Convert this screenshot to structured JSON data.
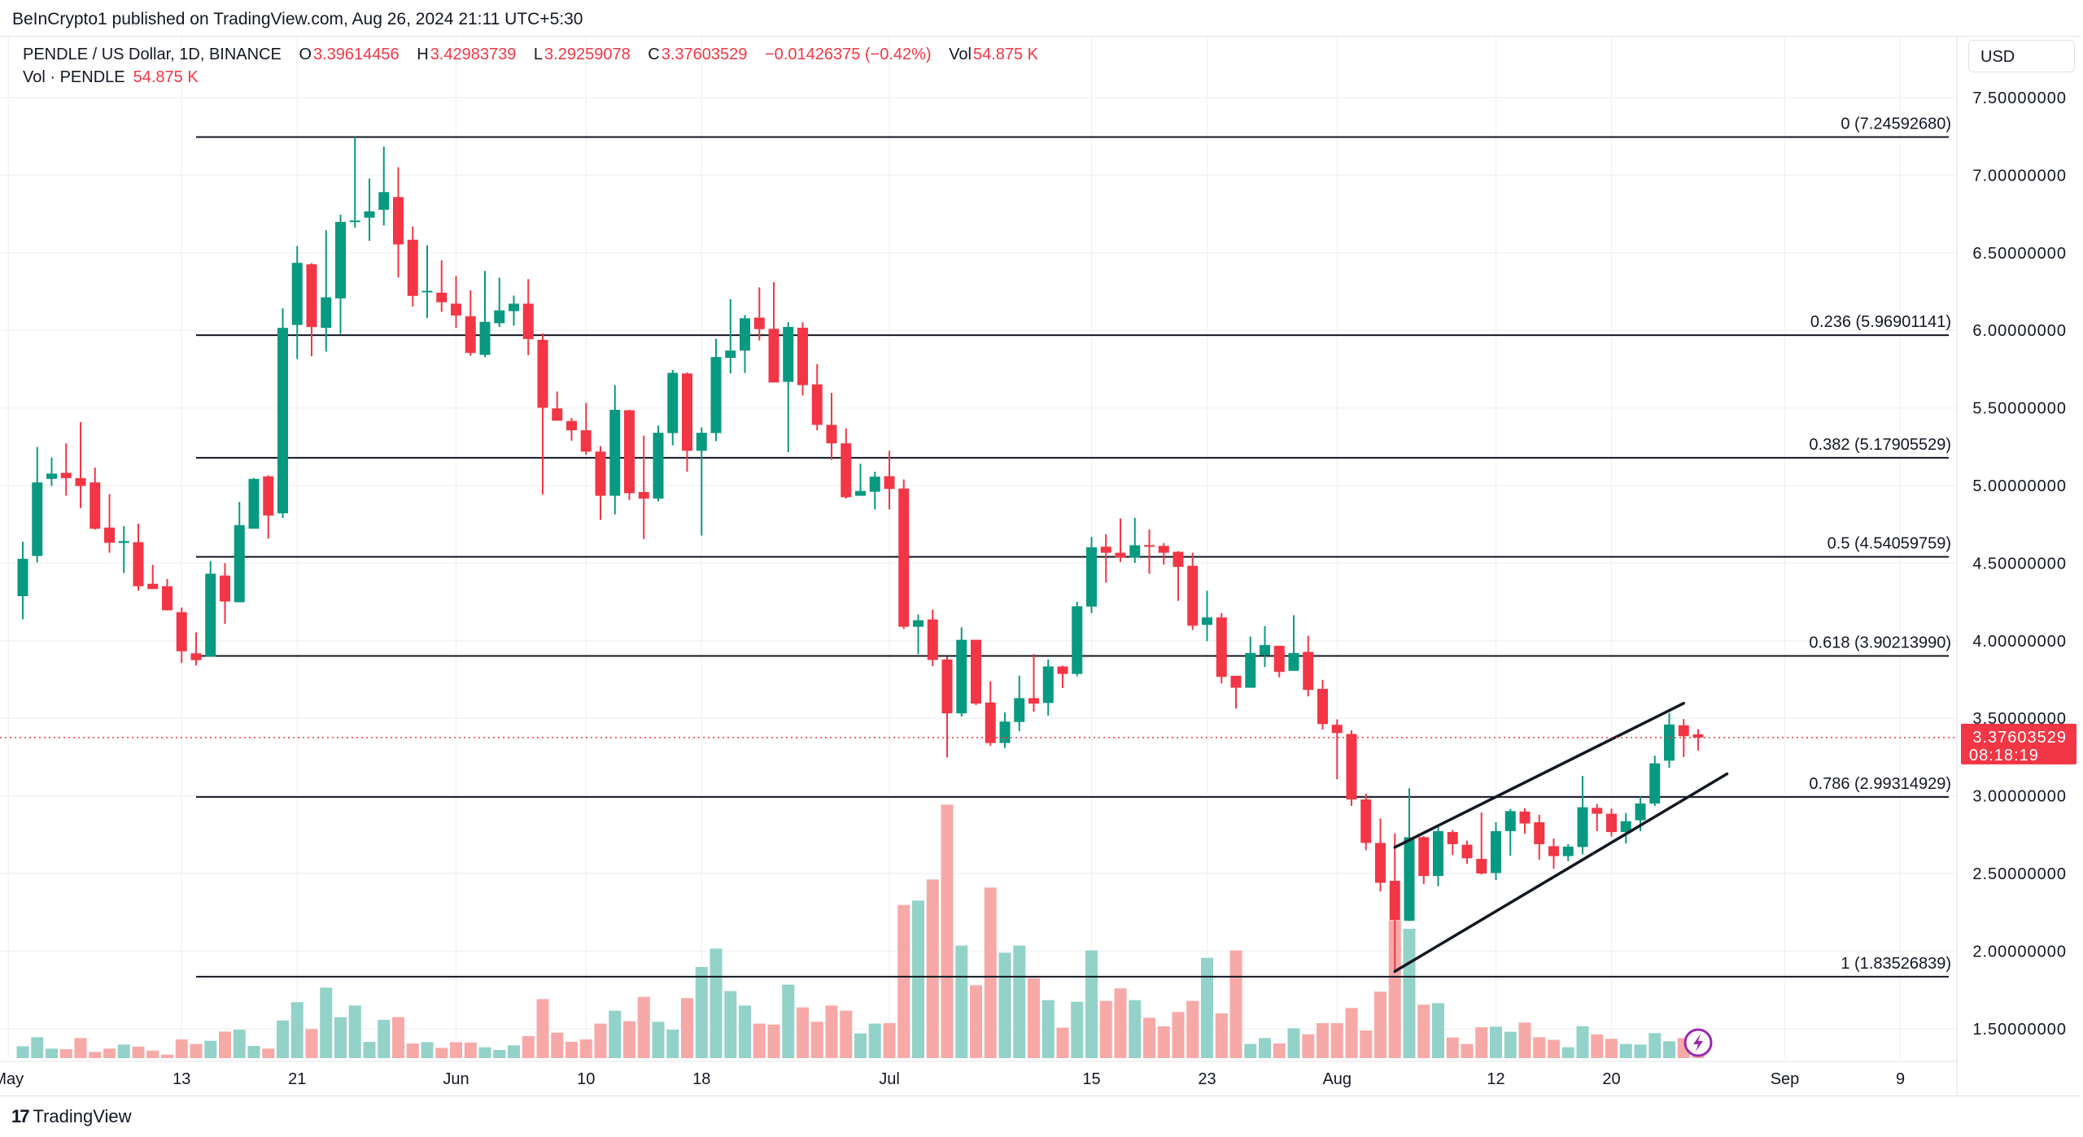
{
  "publish_line": "BeInCrypto1 published on TradingView.com, Aug 26, 2024 21:11 UTC+5:30",
  "legend": {
    "symbol": "PENDLE / US Dollar, 1D, BINANCE",
    "o_label": "O",
    "o": "3.39614456",
    "h_label": "H",
    "h": "3.42983739",
    "l_label": "L",
    "l": "3.29259078",
    "c_label": "C",
    "c": "3.37603529",
    "change": "−0.01426375 (−0.42%)",
    "vol_label": "Vol",
    "vol": "54.875 K",
    "vol_series_label": "Vol · PENDLE",
    "vol_series_value": "54.875 K"
  },
  "currency_button": "USD",
  "current_price": {
    "value": "3.37603529",
    "countdown": "08:18:19",
    "color": "#f23645"
  },
  "branding": {
    "logo": "17",
    "name": "TradingView"
  },
  "colors": {
    "up": "#089981",
    "down": "#f23645",
    "vol_up": "#93d2c9",
    "vol_down": "#f7a9a7",
    "grid": "#f2f3f6",
    "drawing": "#131722",
    "alert_icon": "#9c27b0"
  },
  "icons": {
    "alert": "lightning-icon"
  },
  "chart_data": {
    "type": "candlestick",
    "title": "",
    "price_range": [
      1.3,
      7.75
    ],
    "price_ticks": [
      "7.50000000",
      "7.00000000",
      "6.50000000",
      "6.00000000",
      "5.50000000",
      "5.00000000",
      "4.50000000",
      "4.00000000",
      "3.50000000",
      "3.00000000",
      "2.50000000",
      "2.00000000",
      "1.50000000"
    ],
    "time_ticks": [
      {
        "label": "May",
        "date": "2024-05-01"
      },
      {
        "label": "13",
        "date": "2024-05-13"
      },
      {
        "label": "21",
        "date": "2024-05-21"
      },
      {
        "label": "Jun",
        "date": "2024-06-01"
      },
      {
        "label": "10",
        "date": "2024-06-10"
      },
      {
        "label": "18",
        "date": "2024-06-18"
      },
      {
        "label": "Jul",
        "date": "2024-07-01"
      },
      {
        "label": "15",
        "date": "2024-07-15"
      },
      {
        "label": "23",
        "date": "2024-07-23"
      },
      {
        "label": "Aug",
        "date": "2024-08-01"
      },
      {
        "label": "12",
        "date": "2024-08-12"
      },
      {
        "label": "20",
        "date": "2024-08-20"
      },
      {
        "label": "Sep",
        "date": "2024-09-01"
      },
      {
        "label": "9",
        "date": "2024-09-09"
      }
    ],
    "grid": true,
    "fib_retracement": {
      "start_date": "2024-05-14",
      "levels": [
        {
          "value": 7.2459268,
          "label": "0 (7.24592680)"
        },
        {
          "value": 5.96901141,
          "label": "0.236 (5.96901141)"
        },
        {
          "value": 5.17905529,
          "label": "0.382 (5.17905529)"
        },
        {
          "value": 4.54059759,
          "label": "0.5 (4.54059759)"
        },
        {
          "value": 3.9021399,
          "label": "0.618 (3.90213990)"
        },
        {
          "value": 2.99314929,
          "label": "0.786 (2.99314929)"
        },
        {
          "value": 1.83526839,
          "label": "1 (1.83526839)"
        }
      ]
    },
    "trendlines": [
      {
        "from": [
          "2024-08-05",
          2.669
        ],
        "to": [
          "2024-08-25",
          3.597
        ]
      },
      {
        "from": [
          "2024-08-05",
          1.869
        ],
        "to": [
          "2024-08-28",
          3.142
        ]
      }
    ],
    "columns": [
      "date",
      "open",
      "high",
      "low",
      "close",
      "volume_k"
    ],
    "candles": [
      [
        "2024-05-02",
        4.287,
        4.638,
        4.138,
        4.528,
        79
      ],
      [
        "2024-05-03",
        4.546,
        5.249,
        4.505,
        5.02,
        139
      ],
      [
        "2024-05-04",
        5.043,
        5.18,
        4.997,
        5.077,
        63
      ],
      [
        "2024-05-05",
        5.082,
        5.272,
        4.935,
        5.048,
        59
      ],
      [
        "2024-05-06",
        5.048,
        5.409,
        4.855,
        4.997,
        133
      ],
      [
        "2024-05-07",
        5.02,
        5.116,
        4.716,
        4.722,
        41
      ],
      [
        "2024-05-08",
        4.729,
        4.945,
        4.567,
        4.631,
        63
      ],
      [
        "2024-05-09",
        4.63,
        4.738,
        4.436,
        4.642,
        90
      ],
      [
        "2024-05-10",
        4.635,
        4.754,
        4.322,
        4.351,
        76
      ],
      [
        "2024-05-11",
        4.367,
        4.489,
        4.333,
        4.333,
        50
      ],
      [
        "2024-05-12",
        4.351,
        4.397,
        4.196,
        4.196,
        23
      ],
      [
        "2024-05-13",
        4.184,
        4.214,
        3.857,
        3.932,
        124
      ],
      [
        "2024-05-14",
        3.919,
        4.054,
        3.841,
        3.875,
        94
      ],
      [
        "2024-05-15",
        3.898,
        4.512,
        3.898,
        4.432,
        115
      ],
      [
        "2024-05-16",
        4.42,
        4.5,
        4.109,
        4.253,
        176
      ],
      [
        "2024-05-17",
        4.248,
        4.894,
        4.248,
        4.745,
        189
      ],
      [
        "2024-05-18",
        4.722,
        5.048,
        4.722,
        5.043,
        81
      ],
      [
        "2024-05-19",
        5.059,
        5.066,
        4.658,
        4.807,
        63
      ],
      [
        "2024-05-20",
        4.821,
        6.142,
        4.791,
        6.016,
        250
      ],
      [
        "2024-05-21",
        6.035,
        6.543,
        5.815,
        6.435,
        371
      ],
      [
        "2024-05-22",
        6.426,
        6.433,
        5.833,
        6.021,
        193
      ],
      [
        "2024-05-23",
        6.016,
        6.646,
        5.863,
        6.213,
        468
      ],
      [
        "2024-05-24",
        6.206,
        6.745,
        5.977,
        6.699,
        272
      ],
      [
        "2024-05-25",
        6.7,
        7.246,
        6.662,
        6.708,
        349
      ],
      [
        "2024-05-26",
        6.726,
        6.978,
        6.577,
        6.767,
        108
      ],
      [
        "2024-05-27",
        6.777,
        7.184,
        6.676,
        6.891,
        254
      ],
      [
        "2024-05-28",
        6.859,
        7.051,
        6.341,
        6.554,
        272
      ],
      [
        "2024-05-29",
        6.584,
        6.669,
        6.154,
        6.222,
        97
      ],
      [
        "2024-05-30",
        6.25,
        6.548,
        6.08,
        6.255,
        106
      ],
      [
        "2024-05-31",
        6.243,
        6.451,
        6.119,
        6.181,
        68
      ],
      [
        "2024-06-01",
        6.172,
        6.351,
        6.016,
        6.096,
        106
      ],
      [
        "2024-06-02",
        6.091,
        6.258,
        5.835,
        5.855,
        103
      ],
      [
        "2024-06-03",
        5.842,
        6.383,
        5.828,
        6.055,
        72
      ],
      [
        "2024-06-04",
        6.046,
        6.339,
        6.022,
        6.129,
        54
      ],
      [
        "2024-06-05",
        6.124,
        6.224,
        6.031,
        6.172,
        85
      ],
      [
        "2024-06-06",
        6.172,
        6.33,
        5.84,
        5.944,
        146
      ],
      [
        "2024-06-07",
        5.939,
        5.981,
        4.942,
        5.501,
        392
      ],
      [
        "2024-06-08",
        5.497,
        5.606,
        5.418,
        5.418,
        169
      ],
      [
        "2024-06-09",
        5.416,
        5.436,
        5.289,
        5.356,
        108
      ],
      [
        "2024-06-10",
        5.356,
        5.532,
        5.198,
        5.219,
        124
      ],
      [
        "2024-06-11",
        5.219,
        5.254,
        4.779,
        4.934,
        229
      ],
      [
        "2024-06-12",
        4.934,
        5.647,
        4.814,
        5.488,
        315
      ],
      [
        "2024-06-13",
        5.485,
        5.488,
        4.907,
        4.951,
        245
      ],
      [
        "2024-06-14",
        4.958,
        5.321,
        4.655,
        4.916,
        407
      ],
      [
        "2024-06-15",
        4.916,
        5.386,
        4.898,
        5.34,
        241
      ],
      [
        "2024-06-16",
        5.338,
        5.744,
        5.259,
        5.726,
        189
      ],
      [
        "2024-06-17",
        5.722,
        5.729,
        5.089,
        5.224,
        398
      ],
      [
        "2024-06-18",
        5.224,
        5.374,
        4.678,
        5.34,
        605
      ],
      [
        "2024-06-19",
        5.338,
        5.946,
        5.286,
        5.828,
        727
      ],
      [
        "2024-06-20",
        5.823,
        6.201,
        5.722,
        5.87,
        445
      ],
      [
        "2024-06-21",
        5.87,
        6.099,
        5.726,
        6.078,
        349
      ],
      [
        "2024-06-22",
        6.082,
        6.277,
        5.934,
        6.008,
        229
      ],
      [
        "2024-06-23",
        6.01,
        6.311,
        5.664,
        5.664,
        223
      ],
      [
        "2024-06-24",
        5.668,
        6.052,
        5.215,
        6.022,
        488
      ],
      [
        "2024-06-25",
        6.017,
        6.052,
        5.58,
        5.647,
        337
      ],
      [
        "2024-06-26",
        5.652,
        5.782,
        5.356,
        5.391,
        241
      ],
      [
        "2024-06-27",
        5.391,
        5.597,
        5.166,
        5.272,
        349
      ],
      [
        "2024-06-28",
        5.272,
        5.368,
        4.916,
        4.925,
        315
      ],
      [
        "2024-06-29",
        4.934,
        5.141,
        4.934,
        4.965,
        164
      ],
      [
        "2024-06-30",
        4.96,
        5.089,
        4.846,
        5.057,
        229
      ],
      [
        "2024-07-01",
        5.06,
        5.224,
        4.846,
        4.978,
        232
      ],
      [
        "2024-07-02",
        4.981,
        5.039,
        4.076,
        4.09,
        1017
      ],
      [
        "2024-07-03",
        4.09,
        4.169,
        3.914,
        4.132,
        1046
      ],
      [
        "2024-07-04",
        4.137,
        4.201,
        3.836,
        3.876,
        1186
      ],
      [
        "2024-07-05",
        3.879,
        3.897,
        3.248,
        3.532,
        1683
      ],
      [
        "2024-07-06",
        3.532,
        4.086,
        3.511,
        4.006,
        747
      ],
      [
        "2024-07-07",
        4.006,
        4.006,
        3.585,
        3.595,
        484
      ],
      [
        "2024-07-08",
        3.602,
        3.739,
        3.323,
        3.341,
        1132
      ],
      [
        "2024-07-09",
        3.341,
        3.537,
        3.309,
        3.479,
        700
      ],
      [
        "2024-07-10",
        3.476,
        3.774,
        3.418,
        3.63,
        747
      ],
      [
        "2024-07-11",
        3.63,
        3.914,
        3.542,
        3.595,
        531
      ],
      [
        "2024-07-12",
        3.599,
        3.879,
        3.518,
        3.834,
        385
      ],
      [
        "2024-07-13",
        3.834,
        3.839,
        3.695,
        3.786,
        202
      ],
      [
        "2024-07-14",
        3.786,
        4.251,
        3.771,
        4.222,
        374
      ],
      [
        "2024-07-15",
        4.22,
        4.669,
        4.178,
        4.602,
        715
      ],
      [
        "2024-07-16",
        4.606,
        4.687,
        4.374,
        4.567,
        380
      ],
      [
        "2024-07-17",
        4.567,
        4.788,
        4.508,
        4.536,
        463
      ],
      [
        "2024-07-18",
        4.536,
        4.792,
        4.502,
        4.615,
        385
      ],
      [
        "2024-07-19",
        4.616,
        4.717,
        4.432,
        4.611,
        268
      ],
      [
        "2024-07-20",
        4.611,
        4.629,
        4.49,
        4.567,
        211
      ],
      [
        "2024-07-21",
        4.573,
        4.578,
        4.257,
        4.476,
        306
      ],
      [
        "2024-07-22",
        4.483,
        4.567,
        4.069,
        4.097,
        380
      ],
      [
        "2024-07-23",
        4.102,
        4.322,
        3.997,
        4.15,
        666
      ],
      [
        "2024-07-24",
        4.15,
        4.178,
        3.725,
        3.767,
        297
      ],
      [
        "2024-07-25",
        3.774,
        3.774,
        3.563,
        3.697,
        715
      ],
      [
        "2024-07-26",
        3.697,
        4.027,
        3.697,
        3.921,
        94
      ],
      [
        "2024-07-27",
        3.907,
        4.094,
        3.83,
        3.972,
        133
      ],
      [
        "2024-07-28",
        3.967,
        3.967,
        3.764,
        3.799,
        97
      ],
      [
        "2024-07-29",
        3.806,
        4.164,
        3.806,
        3.921,
        198
      ],
      [
        "2024-07-30",
        3.928,
        4.032,
        3.641,
        3.683,
        158
      ],
      [
        "2024-07-31",
        3.69,
        3.748,
        3.427,
        3.463,
        232
      ],
      [
        "2024-08-01",
        3.458,
        3.493,
        3.107,
        3.405,
        232
      ],
      [
        "2024-08-02",
        3.399,
        3.423,
        2.935,
        2.977,
        333
      ],
      [
        "2024-08-03",
        2.977,
        3.014,
        2.65,
        2.697,
        184
      ],
      [
        "2024-08-04",
        2.697,
        2.855,
        2.384,
        2.44,
        441
      ],
      [
        "2024-08-05",
        2.453,
        2.759,
        1.88,
        2.201,
        916
      ],
      [
        "2024-08-06",
        2.195,
        3.049,
        2.195,
        2.734,
        859
      ],
      [
        "2024-08-07",
        2.734,
        2.741,
        2.432,
        2.484,
        355
      ],
      [
        "2024-08-08",
        2.484,
        2.811,
        2.418,
        2.773,
        365
      ],
      [
        "2024-08-09",
        2.767,
        2.78,
        2.619,
        2.689,
        137
      ],
      [
        "2024-08-10",
        2.685,
        2.711,
        2.563,
        2.598,
        94
      ],
      [
        "2024-08-11",
        2.594,
        2.893,
        2.493,
        2.5,
        205
      ],
      [
        "2024-08-12",
        2.503,
        2.83,
        2.458,
        2.773,
        209
      ],
      [
        "2024-08-13",
        2.773,
        2.916,
        2.615,
        2.902,
        175
      ],
      [
        "2024-08-14",
        2.899,
        2.921,
        2.755,
        2.822,
        236
      ],
      [
        "2024-08-15",
        2.83,
        2.878,
        2.589,
        2.689,
        139
      ],
      [
        "2024-08-16",
        2.676,
        2.725,
        2.531,
        2.612,
        121
      ],
      [
        "2024-08-17",
        2.612,
        2.689,
        2.58,
        2.673,
        72
      ],
      [
        "2024-08-18",
        2.671,
        3.129,
        2.624,
        2.927,
        212
      ],
      [
        "2024-08-19",
        2.923,
        2.948,
        2.773,
        2.885,
        157
      ],
      [
        "2024-08-20",
        2.885,
        2.918,
        2.738,
        2.767,
        128
      ],
      [
        "2024-08-21",
        2.767,
        2.89,
        2.694,
        2.837,
        94
      ],
      [
        "2024-08-22",
        2.843,
        2.995,
        2.773,
        2.951,
        90
      ],
      [
        "2024-08-23",
        2.951,
        3.259,
        2.935,
        3.21,
        166
      ],
      [
        "2024-08-24",
        3.227,
        3.533,
        3.18,
        3.46,
        112
      ],
      [
        "2024-08-25",
        3.455,
        3.495,
        3.25,
        3.385,
        133
      ],
      [
        "2024-08-26",
        3.39614456,
        3.42983739,
        3.29259078,
        3.37603529,
        54.875
      ]
    ]
  }
}
